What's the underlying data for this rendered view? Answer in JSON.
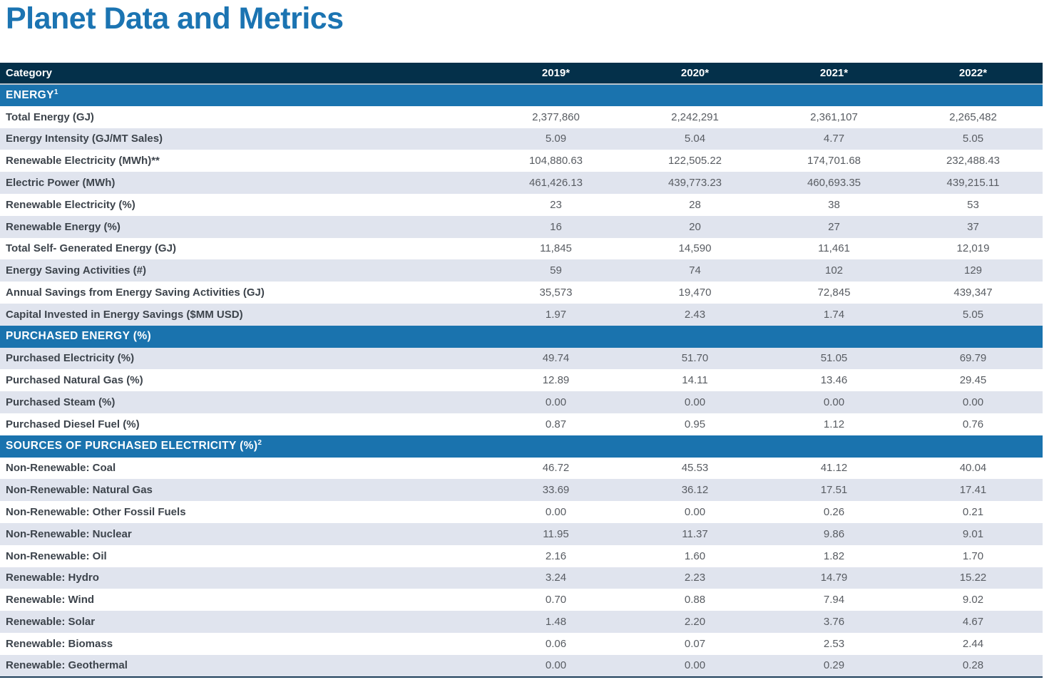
{
  "title": "Planet Data and Metrics",
  "colors": {
    "title_blue": "#1b74b2",
    "header_navy": "#04304a",
    "section_blue": "#1a73ae",
    "row_stripe": "#e0e4ee",
    "bottom_border": "#1e3e5a"
  },
  "table": {
    "header": {
      "category": "Category",
      "years": [
        "2019*",
        "2020*",
        "2021*",
        "2022*"
      ]
    },
    "sections": [
      {
        "label": "ENERGY",
        "sup": "1",
        "rows": [
          {
            "category": "Total Energy (GJ)",
            "values": [
              "2,377,860",
              "2,242,291",
              "2,361,107",
              "2,265,482"
            ]
          },
          {
            "category": "Energy Intensity (GJ/MT Sales)",
            "values": [
              "5.09",
              "5.04",
              "4.77",
              "5.05"
            ]
          },
          {
            "category": "Renewable Electricity (MWh)**",
            "values": [
              "104,880.63",
              "122,505.22",
              "174,701.68",
              "232,488.43"
            ]
          },
          {
            "category": "Electric Power (MWh)",
            "values": [
              "461,426.13",
              "439,773.23",
              "460,693.35",
              "439,215.11"
            ]
          },
          {
            "category": "Renewable Electricity (%)",
            "values": [
              "23",
              "28",
              "38",
              "53"
            ]
          },
          {
            "category": "Renewable Energy (%)",
            "values": [
              "16",
              "20",
              "27",
              "37"
            ]
          },
          {
            "category": "Total Self- Generated Energy (GJ)",
            "values": [
              "11,845",
              "14,590",
              "11,461",
              "12,019"
            ]
          },
          {
            "category": "Energy Saving Activities (#)",
            "values": [
              "59",
              "74",
              "102",
              "129"
            ]
          },
          {
            "category": "Annual Savings from Energy Saving Activities (GJ)",
            "values": [
              "35,573",
              "19,470",
              "72,845",
              "439,347"
            ]
          },
          {
            "category": "Capital Invested in Energy Savings ($MM USD)",
            "values": [
              "1.97",
              "2.43",
              "1.74",
              "5.05"
            ]
          }
        ]
      },
      {
        "label": "PURCHASED ENERGY (%)",
        "sup": "",
        "rows": [
          {
            "category": "Purchased Electricity (%)",
            "values": [
              "49.74",
              "51.70",
              "51.05",
              "69.79"
            ]
          },
          {
            "category": "Purchased Natural Gas (%)",
            "values": [
              "12.89",
              "14.11",
              "13.46",
              "29.45"
            ]
          },
          {
            "category": "Purchased Steam (%)",
            "values": [
              "0.00",
              "0.00",
              "0.00",
              "0.00"
            ]
          },
          {
            "category": "Purchased Diesel Fuel (%)",
            "values": [
              "0.87",
              "0.95",
              "1.12",
              "0.76"
            ]
          }
        ]
      },
      {
        "label": "SOURCES OF PURCHASED ELECTRICITY (%)",
        "sup": "2",
        "rows": [
          {
            "category": "Non-Renewable: Coal",
            "values": [
              "46.72",
              "45.53",
              "41.12",
              "40.04"
            ]
          },
          {
            "category": "Non-Renewable: Natural Gas",
            "values": [
              "33.69",
              "36.12",
              "17.51",
              "17.41"
            ]
          },
          {
            "category": "Non-Renewable: Other Fossil Fuels",
            "values": [
              "0.00",
              "0.00",
              "0.26",
              "0.21"
            ]
          },
          {
            "category": "Non-Renewable: Nuclear",
            "values": [
              "11.95",
              "11.37",
              "9.86",
              "9.01"
            ]
          },
          {
            "category": "Non-Renewable: Oil",
            "values": [
              "2.16",
              "1.60",
              "1.82",
              "1.70"
            ]
          },
          {
            "category": "Renewable: Hydro",
            "values": [
              "3.24",
              "2.23",
              "14.79",
              "15.22"
            ]
          },
          {
            "category": "Renewable: Wind",
            "values": [
              "0.70",
              "0.88",
              "7.94",
              "9.02"
            ]
          },
          {
            "category": "Renewable: Solar",
            "values": [
              "1.48",
              "2.20",
              "3.76",
              "4.67"
            ]
          },
          {
            "category": "Renewable: Biomass",
            "values": [
              "0.06",
              "0.07",
              "2.53",
              "2.44"
            ]
          },
          {
            "category": "Renewable: Geothermal",
            "values": [
              "0.00",
              "0.00",
              "0.29",
              "0.28"
            ]
          }
        ]
      }
    ]
  }
}
